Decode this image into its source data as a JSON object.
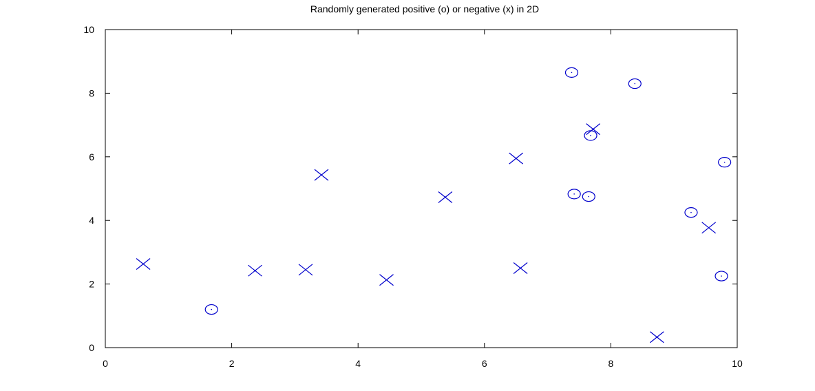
{
  "chart_data": {
    "type": "scatter",
    "title": "Randomly generated positive (o) or negative (x) in 2D",
    "xlabel": "",
    "ylabel": "",
    "xlim": [
      0,
      10
    ],
    "ylim": [
      0,
      10
    ],
    "xticks": [
      "0",
      "2",
      "4",
      "6",
      "8",
      "10"
    ],
    "yticks": [
      "0",
      "2",
      "4",
      "6",
      "8",
      "10"
    ],
    "grid": false,
    "marker_color": "#0000cc",
    "series": [
      {
        "marker": "o",
        "points": [
          {
            "x": 1.68,
            "y": 1.2
          },
          {
            "x": 7.38,
            "y": 8.65
          },
          {
            "x": 8.38,
            "y": 8.3
          },
          {
            "x": 7.68,
            "y": 6.67
          },
          {
            "x": 7.42,
            "y": 4.83
          },
          {
            "x": 7.65,
            "y": 4.75
          },
          {
            "x": 9.8,
            "y": 5.83
          },
          {
            "x": 9.27,
            "y": 4.25
          },
          {
            "x": 9.75,
            "y": 2.25
          }
        ]
      },
      {
        "marker": "x",
        "points": [
          {
            "x": 0.6,
            "y": 2.63
          },
          {
            "x": 2.37,
            "y": 2.42
          },
          {
            "x": 3.17,
            "y": 2.45
          },
          {
            "x": 3.42,
            "y": 5.43
          },
          {
            "x": 4.45,
            "y": 2.13
          },
          {
            "x": 5.38,
            "y": 4.73
          },
          {
            "x": 6.5,
            "y": 5.95
          },
          {
            "x": 6.57,
            "y": 2.5
          },
          {
            "x": 7.72,
            "y": 6.87
          },
          {
            "x": 9.55,
            "y": 3.77
          },
          {
            "x": 8.73,
            "y": 0.33
          }
        ]
      }
    ]
  }
}
